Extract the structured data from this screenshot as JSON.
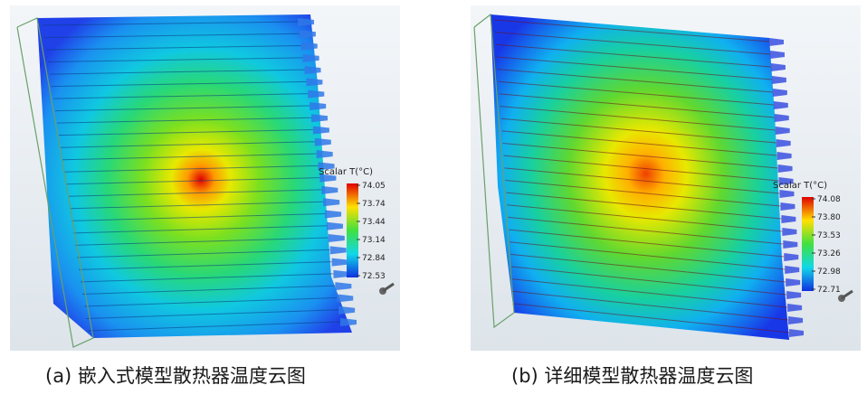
{
  "panels": [
    {
      "id": "a",
      "caption": "(a)  嵌入式模型散热器温度云图",
      "legend_title": "Scalar T(°C)",
      "ticks": [
        "74.05",
        "73.74",
        "73.44",
        "73.14",
        "72.84",
        "72.53"
      ],
      "colors": {
        "bg_top": "#f2f5f8",
        "bg_bottom": "#dfe6ec",
        "edge": "#3a6be0"
      }
    },
    {
      "id": "b",
      "caption": "(b)  详细模型散热器温度云图",
      "legend_title": "Scalar T(°C)",
      "ticks": [
        "74.08",
        "73.80",
        "73.53",
        "73.26",
        "72.98",
        "72.71"
      ],
      "colors": {
        "bg_top": "#f2f5f8",
        "bg_bottom": "#dfe6ec",
        "edge": "#b03050"
      }
    }
  ]
}
